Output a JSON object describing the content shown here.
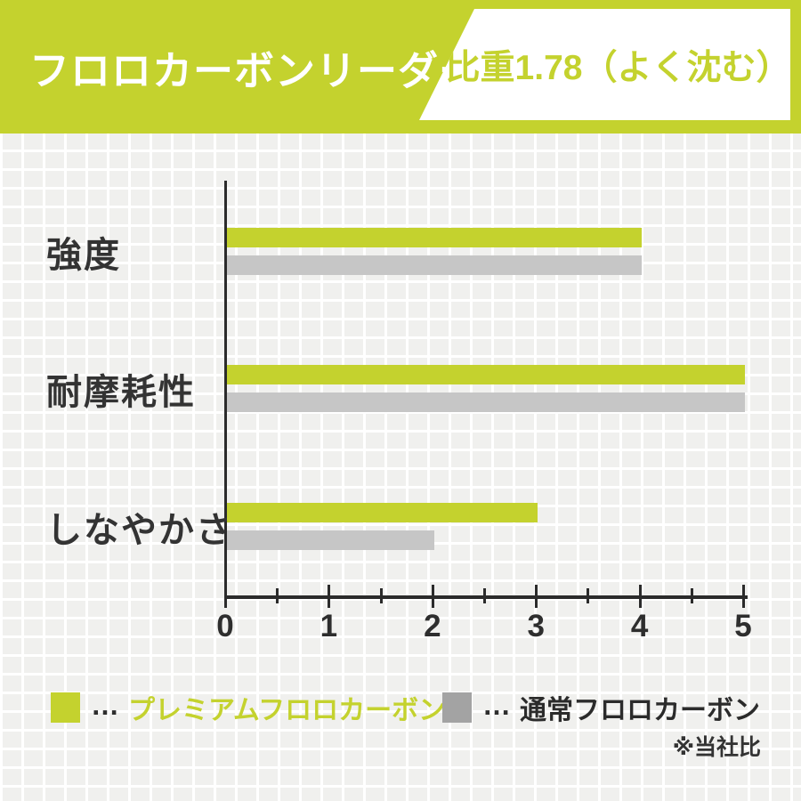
{
  "header": {
    "title": "フロロカーボンリーダー",
    "spec_badge": "比重1.78（よく沈む）"
  },
  "chart_data": {
    "type": "bar",
    "orientation": "horizontal",
    "title": "",
    "categories": [
      "強度",
      "耐摩耗性",
      "しなやかさ"
    ],
    "series": [
      {
        "name": "プレミアムフロロカーボン",
        "color": "#c4d22e",
        "values": [
          4,
          5,
          3
        ]
      },
      {
        "name": "通常フロロカーボン",
        "color": "#c6c6c6",
        "values": [
          4,
          5,
          2
        ]
      }
    ],
    "xlim": [
      0,
      5
    ],
    "x_ticks": [
      0,
      1,
      2,
      3,
      4,
      5
    ],
    "minor_tick_step": 0.5,
    "grid": false,
    "legend_position": "bottom"
  },
  "legend": {
    "items": [
      {
        "prefix": "…",
        "label": "プレミアムフロロカーボン",
        "swatch_color": "#c4d22e",
        "text_color": "#c4d22e"
      },
      {
        "prefix": "…",
        "label": "通常フロロカーボン",
        "swatch_color": "#a3a3a3",
        "text_color": "#2b2b2b"
      }
    ]
  },
  "footnote": "※当社比",
  "colors": {
    "accent_chartreuse": "#c4d22e",
    "bar_gray": "#c6c6c6",
    "legend_gray": "#a3a3a3",
    "text_dark": "#2e2e2e",
    "background_cell": "#f0f0ee",
    "grid_line": "#ffffff"
  }
}
